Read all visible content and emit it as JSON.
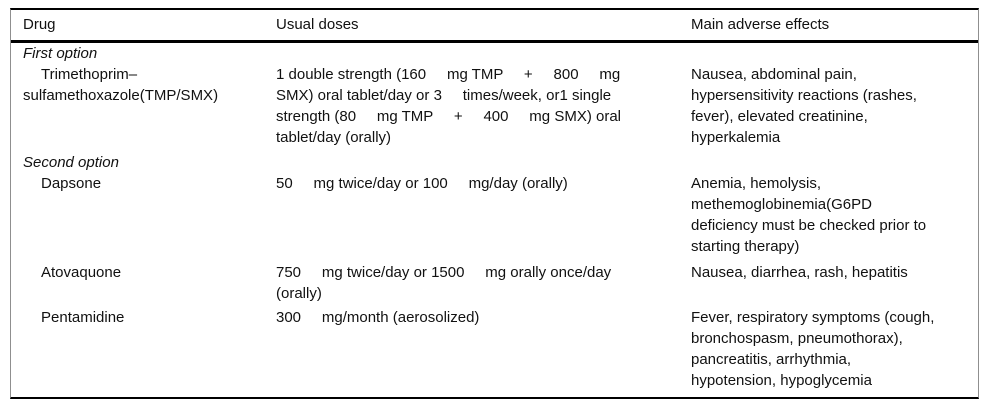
{
  "table": {
    "columns": [
      "Drug",
      "Usual doses",
      "Main adverse effects"
    ],
    "sections": [
      {
        "label": "First option",
        "rows": [
          {
            "drug": "Trimethoprim–\nsulfamethoxazole(TMP/SMX)",
            "doses": "1 double strength (160     mg TMP     +     800     mg\nSMX) oral tablet/day or 3     times/week, or1 single\nstrength (80     mg TMP     +     400     mg SMX) oral\ntablet/day (orally)",
            "effects": "Nausea, abdominal pain,\nhypersensitivity reactions (rashes,\nfever), elevated creatinine,\nhyperkalemia"
          }
        ]
      },
      {
        "label": "Second option",
        "rows": [
          {
            "drug": "Dapsone",
            "doses": "50     mg twice/day or 100     mg/day (orally)",
            "effects": "Anemia, hemolysis,\nmethemoglobinemia(G6PD\ndeficiency must be checked prior to\nstarting therapy)"
          },
          {
            "drug": "Atovaquone",
            "doses": "750     mg twice/day or 1500     mg orally once/day\n(orally)",
            "effects": "Nausea, diarrhea, rash, hepatitis"
          },
          {
            "drug": "Pentamidine",
            "doses": "300     mg/month (aerosolized)",
            "effects": "Fever, respiratory symptoms (cough,\nbronchospasm, pneumothorax),\npancreatitis, arrhythmia,\nhypotension, hypoglycemia"
          }
        ]
      }
    ],
    "colors": {
      "rule": "#000000",
      "side_rule": "#8f8f8f",
      "text": "#111111",
      "background": "#ffffff"
    }
  }
}
